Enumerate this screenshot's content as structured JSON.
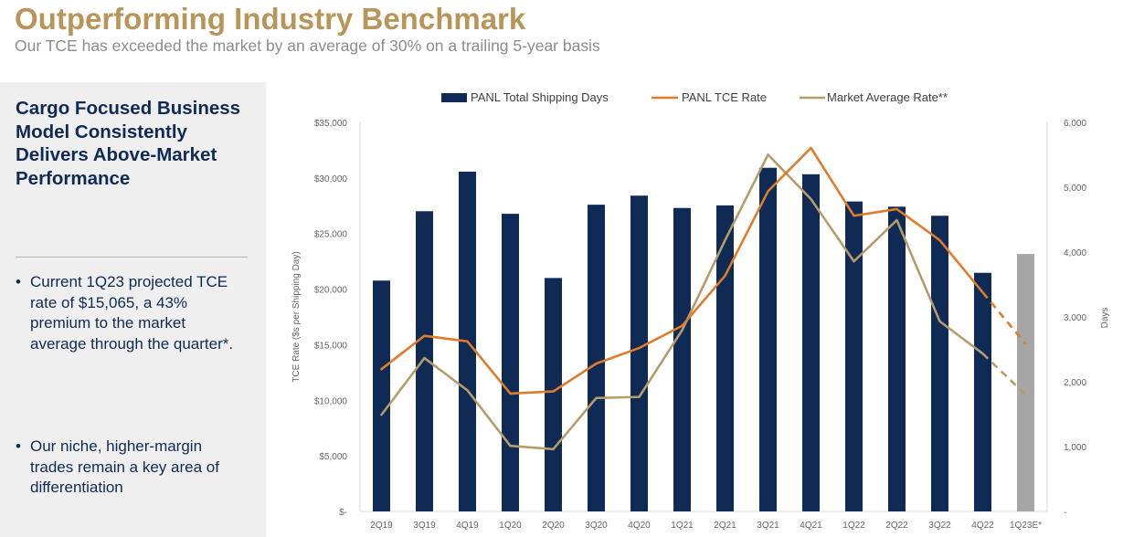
{
  "header": {
    "title": "Outperforming Industry Benchmark",
    "subtitle": "Our TCE has exceeded the market by an average of 30% on a trailing 5-year basis"
  },
  "sidebar": {
    "heading": "Cargo Focused Business Model Consistently Delivers Above-Market Performance",
    "bullets": [
      "Current 1Q23 projected TCE rate of $15,065, a 43% premium to the market average through the quarter*.",
      "Our niche, higher-margin trades remain a key area of differentiation"
    ],
    "bullet_symbol": "•"
  },
  "colors": {
    "bars": "#0f2a55",
    "estimate_bar": "#a6a6a6",
    "tce": "#e07b2a",
    "market": "#b69c6a",
    "title": "#b8965a"
  },
  "chart_data": {
    "type": "bar",
    "categories": [
      "2Q19",
      "3Q19",
      "4Q19",
      "1Q20",
      "2Q20",
      "3Q20",
      "4Q20",
      "1Q21",
      "2Q21",
      "3Q21",
      "4Q21",
      "1Q22",
      "2Q22",
      "3Q22",
      "4Q22",
      "1Q23E*"
    ],
    "series": [
      {
        "name": "PANL Total Shipping Days",
        "type": "bar",
        "axis": "right",
        "values": [
          3560,
          4630,
          5240,
          4590,
          3600,
          4730,
          4870,
          4680,
          4720,
          5300,
          5200,
          4780,
          4700,
          4560,
          3680,
          3970
        ],
        "estimated_index": 15
      },
      {
        "name": "PANL TCE Rate",
        "type": "line",
        "axis": "left",
        "values": [
          12800,
          15800,
          15300,
          10600,
          10800,
          13300,
          14700,
          16700,
          21200,
          28800,
          32700,
          26600,
          27200,
          24400,
          19700,
          15065
        ],
        "dashed_from_index": 14
      },
      {
        "name": "Market Average Rate**",
        "type": "line",
        "axis": "left",
        "values": [
          8700,
          13800,
          10900,
          5900,
          5600,
          10200,
          10300,
          16300,
          24400,
          32100,
          28100,
          22500,
          26200,
          17100,
          14200,
          10500
        ],
        "dashed_from_index": 14
      }
    ],
    "ylabel_left": "TCE Rate ($s per Shipping Day)",
    "ylabel_right": "Days",
    "ylim_left": [
      0,
      35000
    ],
    "ylim_right": [
      0,
      6000
    ],
    "yticks_left": [
      "$-",
      "$5,000",
      "$10,000",
      "$15,000",
      "$20,000",
      "$25,000",
      "$30,000",
      "$35,000"
    ],
    "yticks_right": [
      "-",
      "1,000",
      "2,000",
      "3,000",
      "4,000",
      "5,000",
      "6,000"
    ],
    "legend_position": "top",
    "grid": false
  }
}
